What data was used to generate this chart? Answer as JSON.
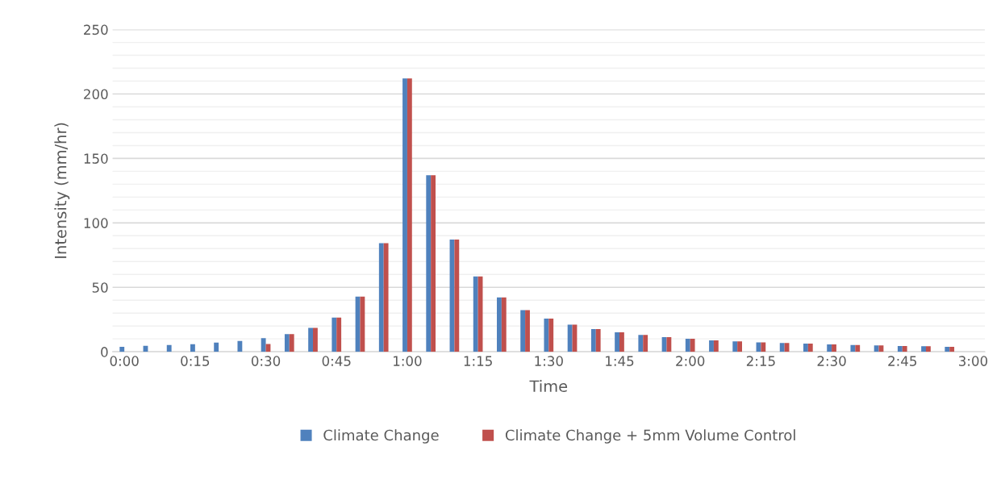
{
  "chart_data": {
    "type": "bar",
    "xlabel": "Time",
    "ylabel": "Intensity (mm/hr)",
    "categories": [
      "0:00",
      null,
      null,
      "0:15",
      null,
      null,
      "0:30",
      null,
      null,
      "0:45",
      null,
      null,
      "1:00",
      null,
      null,
      "1:15",
      null,
      null,
      "1:30",
      null,
      null,
      "1:45",
      null,
      null,
      "2:00",
      null,
      null,
      "2:15",
      null,
      null,
      "2:30",
      null,
      null,
      "2:45",
      null,
      null,
      "3:00"
    ],
    "series": [
      {
        "name": "Climate Change",
        "color": "#4f81bd",
        "values": [
          3.8,
          4.6,
          5.3,
          5.9,
          7.2,
          8.4,
          10.5,
          13.7,
          18.6,
          26.6,
          42.8,
          84.2,
          212,
          137,
          87,
          58.4,
          42.2,
          32.3,
          25.7,
          21.1,
          17.6,
          15.1,
          13.1,
          11.3,
          10.1,
          8.8,
          8.0,
          7.3,
          6.8,
          6.3,
          5.8,
          5.3,
          5.0,
          4.5,
          4.3,
          3.8,
          null
        ]
      },
      {
        "name": "Climate Change + 5mm Volume Control",
        "color": "#c0504d",
        "values": [
          0,
          0,
          0,
          0,
          0,
          0,
          6.1,
          13.7,
          18.6,
          26.6,
          42.8,
          84.2,
          212,
          137,
          87,
          58.4,
          42.2,
          32.3,
          25.7,
          21.1,
          17.6,
          15.1,
          13.1,
          11.3,
          10.1,
          8.8,
          8.0,
          7.3,
          6.8,
          6.3,
          5.8,
          5.3,
          5.0,
          4.5,
          4.3,
          3.8,
          null
        ]
      }
    ],
    "ylim": [
      0,
      250
    ],
    "yticks": [
      0,
      50,
      100,
      150,
      200,
      250
    ],
    "grid": "y",
    "legend": "bottom"
  }
}
